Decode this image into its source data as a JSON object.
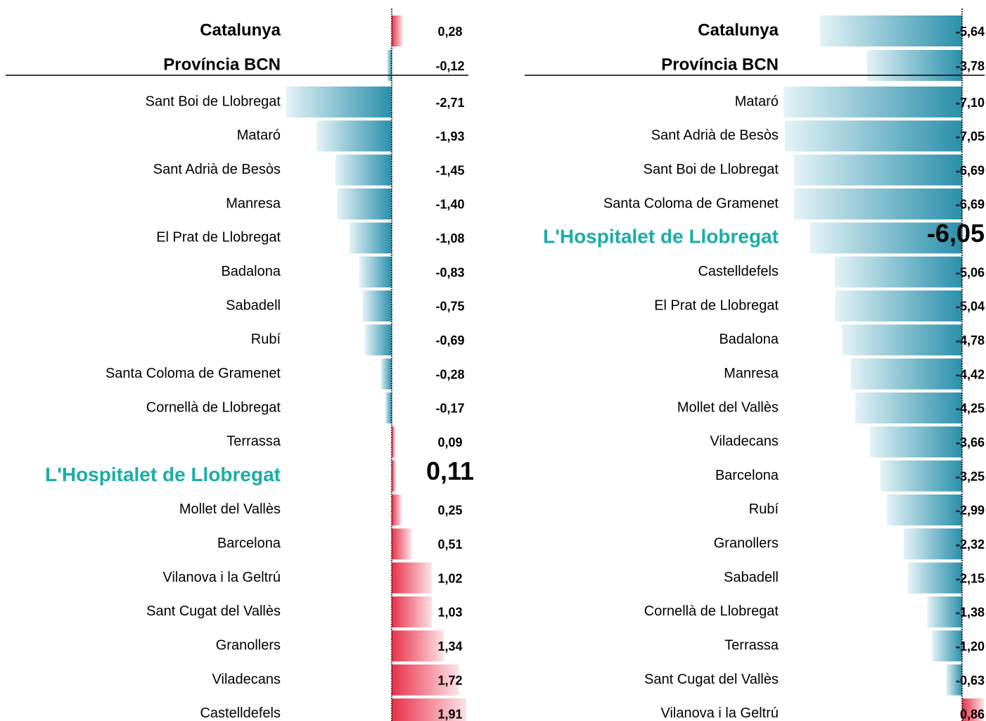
{
  "chart_data": [
    {
      "type": "diverging-bar",
      "summary_categories": [
        "Catalunya",
        "Província BCN"
      ],
      "summary_values": [
        0.28,
        -0.12
      ],
      "summary_value_labels": [
        "0,28",
        "-0,12"
      ],
      "categories": [
        "Sant Boi de Llobregat",
        "Mataró",
        "Sant Adrià de Besòs",
        "Manresa",
        "El Prat de Llobregat",
        "Badalona",
        "Sabadell",
        "Rubí",
        "Santa Coloma de Gramenet",
        "Cornellà de Llobregat",
        "Terrassa",
        "L'Hospitalet de Llobregat",
        "Mollet del Vallès",
        "Barcelona",
        "Vilanova i la Geltrú",
        "Sant Cugat del Vallès",
        "Granollers",
        "Viladecans",
        "Castelldefels"
      ],
      "values": [
        -2.71,
        -1.93,
        -1.45,
        -1.4,
        -1.08,
        -0.83,
        -0.75,
        -0.69,
        -0.28,
        -0.17,
        0.09,
        0.11,
        0.25,
        0.51,
        1.02,
        1.03,
        1.34,
        1.72,
        1.91
      ],
      "value_labels": [
        "-2,71",
        "-1,93",
        "-1,45",
        "-1,40",
        "-1,08",
        "-0,83",
        "-0,75",
        "-0,69",
        "-0,28",
        "-0,17",
        "0,09",
        "0,11",
        "0,25",
        "0,51",
        "1,02",
        "1,03",
        "1,34",
        "1,72",
        "1,91"
      ],
      "highlight": "L'Hospitalet de Llobregat",
      "highlight_color": "#1aada8",
      "colors": {
        "negative": "#2a8fab",
        "positive": "#e8304a"
      }
    },
    {
      "type": "diverging-bar",
      "summary_categories": [
        "Catalunya",
        "Província BCN"
      ],
      "summary_values": [
        -5.64,
        -3.78
      ],
      "summary_value_labels": [
        "-5,64",
        "-3,78"
      ],
      "categories": [
        "Mataró",
        "Sant Adrià de Besòs",
        "Sant Boi de Llobregat",
        "Santa Coloma de Gramenet",
        "L'Hospitalet de Llobregat",
        "Castelldefels",
        "El Prat de Llobregat",
        "Badalona",
        "Manresa",
        "Mollet del Vallès",
        "Viladecans",
        "Barcelona",
        "Rubí",
        "Granollers",
        "Sabadell",
        "Cornellà de Llobregat",
        "Terrassa",
        "Sant Cugat del Vallès",
        "Vilanova i la Geltrú"
      ],
      "values": [
        -7.1,
        -7.05,
        -6.69,
        -6.69,
        -6.05,
        -5.06,
        -5.04,
        -4.78,
        -4.42,
        -4.25,
        -3.66,
        -3.25,
        -2.99,
        -2.32,
        -2.15,
        -1.38,
        -1.2,
        -0.63,
        0.86
      ],
      "value_labels": [
        "-7,10",
        "-7,05",
        "-6,69",
        "-6,69",
        "-6,05",
        "-5,06",
        "-5,04",
        "-4,78",
        "-4,42",
        "-4,25",
        "-3,66",
        "-3,25",
        "-2,99",
        "-2,32",
        "-2,15",
        "-1,38",
        "-1,20",
        "-0,63",
        "0,86"
      ],
      "highlight": "L'Hospitalet de Llobregat",
      "highlight_color": "#1aada8",
      "colors": {
        "negative": "#2a8fab",
        "positive": "#e8304a"
      }
    }
  ]
}
